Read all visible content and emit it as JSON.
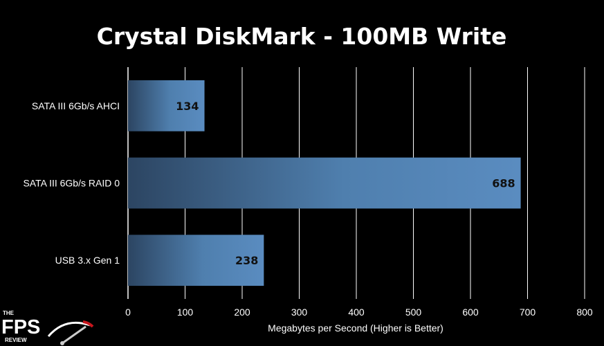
{
  "chart_data": {
    "type": "bar",
    "orientation": "horizontal",
    "title": "Crystal DiskMark - 100MB Write",
    "categories": [
      "SATA III 6Gb/s AHCI",
      "SATA III 6Gb/s RAID 0",
      "USB 3.x Gen 1"
    ],
    "values": [
      134,
      688,
      238
    ],
    "xlabel": "Megabytes per Second (Higher is Better)",
    "ylabel": "",
    "xlim": [
      0,
      800
    ],
    "xticks": [
      0,
      100,
      200,
      300,
      400,
      500,
      600,
      700,
      800
    ],
    "grid": true,
    "legend": "none",
    "colors": {
      "bar_light": "#5a8cc0",
      "bar_dark": "#2c4562",
      "grid": "#ffffff",
      "background": "#000000"
    }
  },
  "logo": {
    "line1": "THE",
    "line2": "FPS",
    "line3": "REVIEW",
    "accent": "#c8161d"
  }
}
